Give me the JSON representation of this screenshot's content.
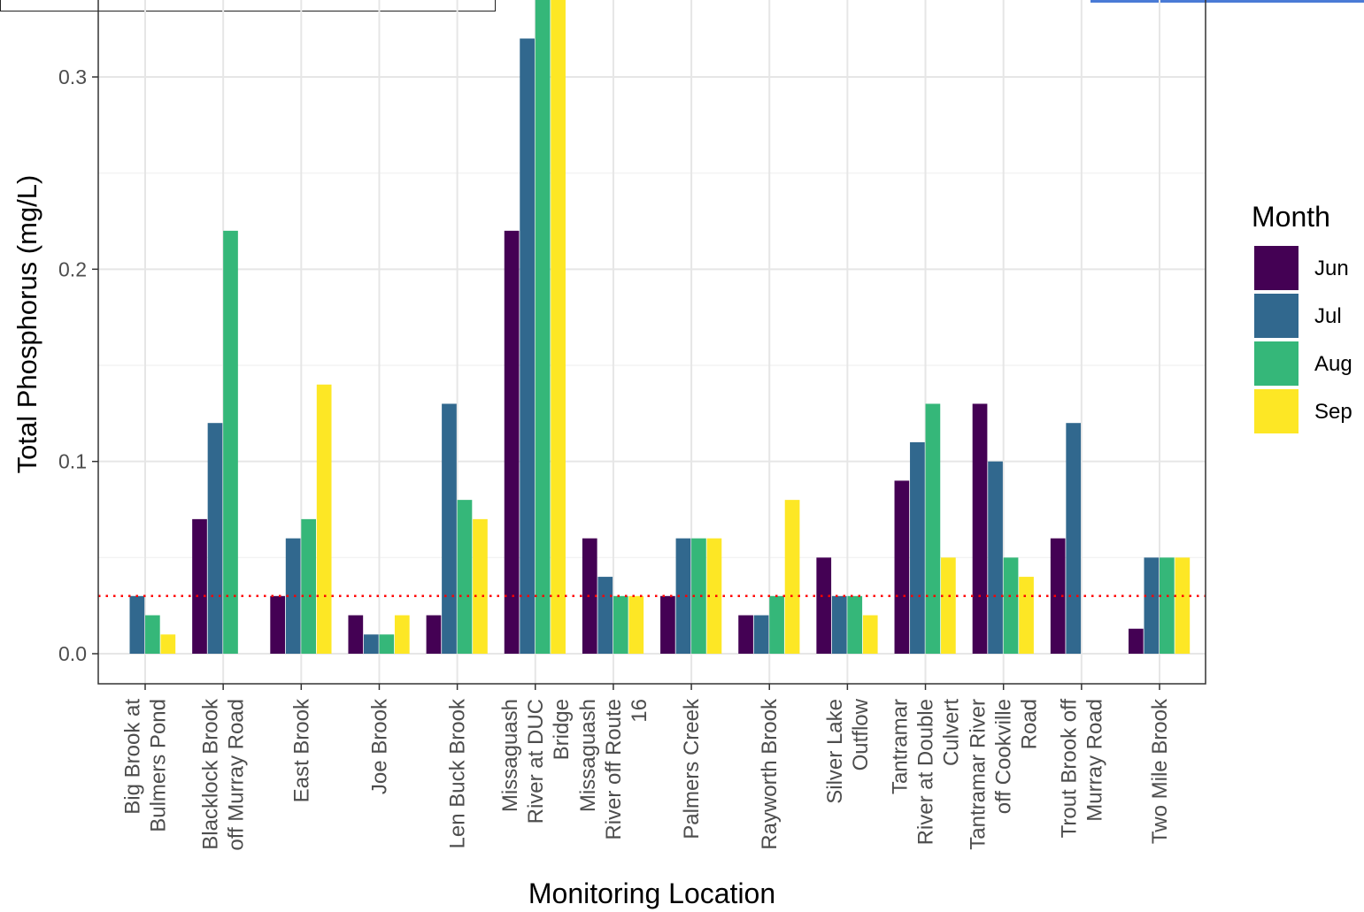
{
  "chart_data": {
    "type": "bar",
    "xlabel": "Monitoring Location",
    "ylabel": "Total Phosphorus (mg/L)",
    "ylim": [
      -0.015,
      0.35
    ],
    "yticks": [
      0.0,
      0.1,
      0.2,
      0.3
    ],
    "ytick_labels": [
      "0.0",
      "0.1",
      "0.2",
      "0.3"
    ],
    "grid": true,
    "legend": {
      "title": "Month",
      "position": "right"
    },
    "reference_line": {
      "y": 0.03,
      "style": "dotted",
      "color": "#ff0000"
    },
    "categories": [
      [
        "Big Brook at",
        "Bulmers Pond"
      ],
      [
        "Blacklock Brook",
        "off Murray Road"
      ],
      [
        "East Brook"
      ],
      [
        "Joe Brook"
      ],
      [
        "Len Buck Brook"
      ],
      [
        "Missaguash",
        "River at DUC",
        "Bridge"
      ],
      [
        "Missaguash",
        "River off Route",
        "16"
      ],
      [
        "Palmers Creek"
      ],
      [
        "Rayworth Brook"
      ],
      [
        "Silver Lake",
        "Outflow"
      ],
      [
        "Tantramar",
        "River at Double",
        "Culvert"
      ],
      [
        "Tantramar River",
        "off Cookville",
        "Road"
      ],
      [
        "Trout Brook off",
        "Murray Road"
      ],
      [
        "Two Mile Brook"
      ]
    ],
    "series": [
      {
        "name": "Jun",
        "color": "#440154",
        "values": [
          null,
          0.07,
          0.03,
          0.02,
          0.02,
          0.22,
          0.06,
          0.03,
          0.02,
          0.05,
          0.09,
          0.13,
          0.06,
          0.013
        ]
      },
      {
        "name": "Jul",
        "color": "#31688E",
        "values": [
          0.03,
          0.12,
          0.06,
          0.01,
          0.13,
          0.32,
          0.04,
          0.06,
          0.02,
          0.03,
          0.11,
          0.1,
          0.12,
          0.05
        ]
      },
      {
        "name": "Aug",
        "color": "#35B779",
        "values": [
          0.02,
          0.22,
          0.07,
          0.01,
          0.08,
          0.36,
          0.03,
          0.06,
          0.03,
          0.03,
          0.13,
          0.05,
          null,
          0.05
        ]
      },
      {
        "name": "Sep",
        "color": "#FDE725",
        "values": [
          0.01,
          null,
          0.14,
          0.02,
          0.07,
          0.36,
          0.03,
          0.06,
          0.08,
          0.02,
          0.05,
          0.04,
          null,
          0.05
        ]
      }
    ]
  }
}
